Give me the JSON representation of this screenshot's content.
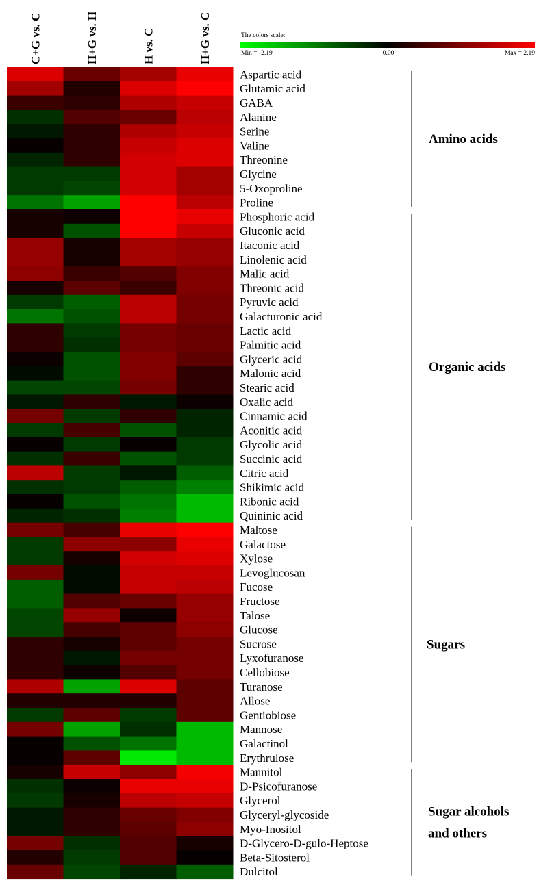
{
  "chart_data": {
    "type": "heatmap",
    "columns": [
      "C+G vs. C",
      "H+G vs. H",
      "H vs. C",
      "H+G vs. C"
    ],
    "colorscale": {
      "title": "The colors scale:",
      "min_label": "Min = -2.19",
      "mid_label": "0.00",
      "max_label": "Max = 2.19",
      "min": -2.19,
      "max": 2.19,
      "low_color": "#00ff00",
      "mid_color": "#000000",
      "high_color": "#ff0000"
    },
    "rows": [
      {
        "label": "Aspartic acid",
        "values": [
          1.9,
          0.9,
          1.4,
          2.0
        ]
      },
      {
        "label": "Glutamic acid",
        "values": [
          1.4,
          0.3,
          1.9,
          2.19
        ]
      },
      {
        "label": "GABA",
        "values": [
          0.5,
          0.4,
          1.5,
          1.7
        ]
      },
      {
        "label": "Alanine",
        "values": [
          -0.4,
          0.7,
          0.9,
          1.6
        ]
      },
      {
        "label": "Serine",
        "values": [
          -0.2,
          0.4,
          1.5,
          1.7
        ]
      },
      {
        "label": "Valine",
        "values": [
          0.05,
          0.4,
          1.7,
          1.9
        ]
      },
      {
        "label": "Threonine",
        "values": [
          -0.3,
          0.4,
          1.8,
          1.9
        ]
      },
      {
        "label": "Glycine",
        "values": [
          -0.5,
          -0.5,
          1.8,
          1.4
        ]
      },
      {
        "label": "5-Oxoproline",
        "values": [
          -0.5,
          -0.6,
          1.8,
          1.4
        ]
      },
      {
        "label": "Proline",
        "values": [
          -1.0,
          -1.4,
          2.19,
          1.6
        ]
      },
      {
        "label": "Phosphoric acid",
        "values": [
          0.2,
          0.1,
          2.19,
          2.0
        ]
      },
      {
        "label": "Gluconic acid",
        "values": [
          0.2,
          -0.7,
          2.19,
          1.7
        ]
      },
      {
        "label": "Itaconic acid",
        "values": [
          1.3,
          0.2,
          1.4,
          1.3
        ]
      },
      {
        "label": "Linolenic acid",
        "values": [
          1.3,
          0.2,
          1.4,
          1.3
        ]
      },
      {
        "label": "Malic acid",
        "values": [
          1.2,
          0.5,
          0.7,
          1.1
        ]
      },
      {
        "label": "Threonic acid",
        "values": [
          0.2,
          0.8,
          0.5,
          1.1
        ]
      },
      {
        "label": "Pyruvic acid",
        "values": [
          -0.5,
          -0.8,
          1.6,
          1.0
        ]
      },
      {
        "label": "Galacturonic acid",
        "values": [
          -1.0,
          -0.7,
          1.6,
          1.0
        ]
      },
      {
        "label": "Lactic acid",
        "values": [
          0.4,
          -0.5,
          1.0,
          0.9
        ]
      },
      {
        "label": "Palmitic acid",
        "values": [
          0.4,
          -0.4,
          1.0,
          0.9
        ]
      },
      {
        "label": "Glyceric acid",
        "values": [
          0.1,
          -0.7,
          1.1,
          0.8
        ]
      },
      {
        "label": "Malonic acid",
        "values": [
          -0.1,
          -0.7,
          1.1,
          0.4
        ]
      },
      {
        "label": "Stearic acid",
        "values": [
          -0.6,
          -0.6,
          1.0,
          0.4
        ]
      },
      {
        "label": "Oxalic acid",
        "values": [
          -0.2,
          0.4,
          -0.2,
          0.1
        ]
      },
      {
        "label": "Cinnamic acid",
        "values": [
          1.0,
          -0.5,
          0.4,
          -0.3
        ]
      },
      {
        "label": "Aconitic acid",
        "values": [
          -0.5,
          0.6,
          -0.7,
          -0.3
        ]
      },
      {
        "label": "Glycolic acid",
        "values": [
          0.05,
          -0.5,
          0.05,
          -0.5
        ]
      },
      {
        "label": "Succinic acid",
        "values": [
          -0.4,
          0.5,
          -0.7,
          -0.5
        ]
      },
      {
        "label": "Citric acid",
        "values": [
          1.6,
          -0.5,
          -0.2,
          -0.8
        ]
      },
      {
        "label": "Shikimic acid",
        "values": [
          -0.4,
          -0.5,
          -0.8,
          -1.1
        ]
      },
      {
        "label": "Ribonic acid",
        "values": [
          0.05,
          -0.7,
          -1.0,
          -1.6
        ]
      },
      {
        "label": "Quininic acid",
        "values": [
          -0.3,
          -0.4,
          -1.1,
          -1.6
        ]
      },
      {
        "label": "Maltose",
        "values": [
          1.0,
          0.6,
          2.0,
          2.19
        ]
      },
      {
        "label": "Galactose",
        "values": [
          -0.5,
          1.2,
          1.2,
          2.0
        ]
      },
      {
        "label": "Xylose",
        "values": [
          -0.5,
          0.2,
          1.8,
          1.9
        ]
      },
      {
        "label": "Levoglucosan",
        "values": [
          1.0,
          -0.1,
          1.7,
          1.7
        ]
      },
      {
        "label": "Fucose",
        "values": [
          -0.8,
          -0.1,
          1.7,
          1.6
        ]
      },
      {
        "label": "Fructose",
        "values": [
          -0.8,
          0.7,
          0.9,
          1.3
        ]
      },
      {
        "label": "Talose",
        "values": [
          -0.6,
          1.3,
          0.1,
          1.3
        ]
      },
      {
        "label": "Glucose",
        "values": [
          -0.6,
          0.6,
          0.8,
          1.2
        ]
      },
      {
        "label": "Sucrose",
        "values": [
          0.4,
          0.2,
          0.8,
          1.0
        ]
      },
      {
        "label": "Lyxofuranose",
        "values": [
          0.4,
          -0.2,
          1.0,
          1.0
        ]
      },
      {
        "label": "Cellobiose",
        "values": [
          0.4,
          0.1,
          0.7,
          1.0
        ]
      },
      {
        "label": "Turanose",
        "values": [
          1.5,
          -1.4,
          1.9,
          0.8
        ]
      },
      {
        "label": "Allose",
        "values": [
          0.3,
          0.3,
          0.3,
          0.8
        ]
      },
      {
        "label": "Gentiobiose",
        "values": [
          -0.5,
          0.8,
          -0.5,
          0.8
        ]
      },
      {
        "label": "Mannose",
        "values": [
          1.0,
          -1.4,
          -0.4,
          -1.6
        ]
      },
      {
        "label": "Galactinol",
        "values": [
          0.05,
          -0.7,
          -1.0,
          -1.6
        ]
      },
      {
        "label": "Erythrulose",
        "values": [
          0.05,
          0.8,
          -2.0,
          -1.6
        ]
      },
      {
        "label": "Mannitol",
        "values": [
          0.2,
          1.7,
          1.2,
          2.1
        ]
      },
      {
        "label": "D-Psicofuranose",
        "values": [
          -0.4,
          0.1,
          2.0,
          2.0
        ]
      },
      {
        "label": "Glycerol",
        "values": [
          -0.5,
          0.2,
          1.6,
          1.7
        ]
      },
      {
        "label": "Glyceryl-glycoside",
        "values": [
          -0.2,
          0.4,
          0.9,
          1.1
        ]
      },
      {
        "label": "Myo-Inositol",
        "values": [
          -0.2,
          0.4,
          0.8,
          1.2
        ]
      },
      {
        "label": "D-Glycero-D-gulo-Heptose",
        "values": [
          1.0,
          -0.4,
          0.7,
          0.2
        ]
      },
      {
        "label": "Beta-Sitosterol",
        "values": [
          0.3,
          -0.5,
          0.7,
          0.05
        ]
      },
      {
        "label": "Dulcitol",
        "values": [
          0.9,
          -0.6,
          -0.3,
          -0.8
        ]
      }
    ],
    "groups": [
      {
        "label": "Amino acids",
        "label_lines": [
          "Amino acids"
        ],
        "start_row": 0,
        "end_row": 9
      },
      {
        "label": "Organic acids",
        "label_lines": [
          "Organic acids"
        ],
        "start_row": 10,
        "end_row": 31
      },
      {
        "label": "Sugars",
        "label_lines": [
          "Sugars"
        ],
        "start_row": 32,
        "end_row": 48
      },
      {
        "label": "Sugar alcohols and others",
        "label_lines": [
          "Sugar alcohols",
          "and others"
        ],
        "start_row": 49,
        "end_row": 56
      }
    ]
  }
}
